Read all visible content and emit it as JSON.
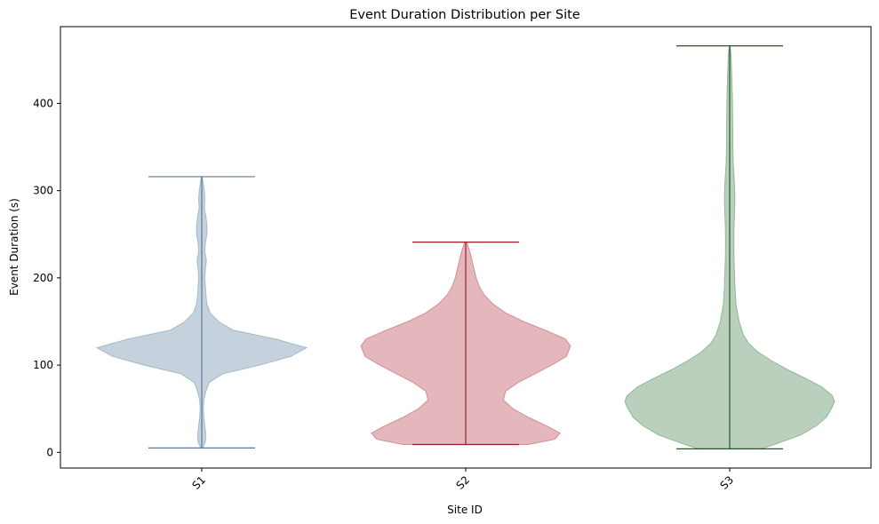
{
  "chart_data": {
    "type": "violin",
    "title": "Event Duration Distribution per Site",
    "xlabel": "Site ID",
    "ylabel": "Event Duration (s)",
    "ylim": [
      -18,
      488
    ],
    "yticks": [
      0,
      100,
      200,
      300,
      400
    ],
    "categories": [
      "S1",
      "S2",
      "S3"
    ],
    "grid": false,
    "series": [
      {
        "category": "S1",
        "min": 5,
        "max": 316,
        "fill": "#7f9cb4",
        "line": "#5b7a92",
        "profile": [
          [
            5,
            0.01
          ],
          [
            12,
            0.035
          ],
          [
            20,
            0.04
          ],
          [
            30,
            0.03
          ],
          [
            40,
            0.02
          ],
          [
            50,
            0.015
          ],
          [
            60,
            0.02
          ],
          [
            70,
            0.04
          ],
          [
            80,
            0.07
          ],
          [
            90,
            0.2
          ],
          [
            100,
            0.55
          ],
          [
            110,
            0.85
          ],
          [
            120,
            1.0
          ],
          [
            130,
            0.7
          ],
          [
            140,
            0.3
          ],
          [
            150,
            0.16
          ],
          [
            160,
            0.08
          ],
          [
            170,
            0.05
          ],
          [
            180,
            0.04
          ],
          [
            190,
            0.035
          ],
          [
            200,
            0.03
          ],
          [
            210,
            0.035
          ],
          [
            220,
            0.045
          ],
          [
            230,
            0.03
          ],
          [
            240,
            0.035
          ],
          [
            250,
            0.05
          ],
          [
            260,
            0.05
          ],
          [
            270,
            0.04
          ],
          [
            280,
            0.025
          ],
          [
            290,
            0.03
          ],
          [
            300,
            0.025
          ],
          [
            310,
            0.012
          ],
          [
            316,
            0.004
          ]
        ]
      },
      {
        "category": "S2",
        "min": 9,
        "max": 241,
        "fill": "#c0606b",
        "line": "#9b1c25",
        "profile": [
          [
            9,
            0.6
          ],
          [
            15,
            0.85
          ],
          [
            22,
            0.9
          ],
          [
            30,
            0.78
          ],
          [
            40,
            0.6
          ],
          [
            50,
            0.45
          ],
          [
            60,
            0.36
          ],
          [
            70,
            0.38
          ],
          [
            80,
            0.5
          ],
          [
            90,
            0.66
          ],
          [
            100,
            0.82
          ],
          [
            110,
            0.96
          ],
          [
            122,
            1.0
          ],
          [
            130,
            0.95
          ],
          [
            140,
            0.76
          ],
          [
            150,
            0.55
          ],
          [
            160,
            0.38
          ],
          [
            170,
            0.26
          ],
          [
            180,
            0.18
          ],
          [
            190,
            0.13
          ],
          [
            200,
            0.1
          ],
          [
            210,
            0.08
          ],
          [
            220,
            0.06
          ],
          [
            230,
            0.04
          ],
          [
            241,
            0.01
          ]
        ]
      },
      {
        "category": "S3",
        "min": 4,
        "max": 466,
        "fill": "#67976b",
        "line": "#1f5a27",
        "profile": [
          [
            4,
            0.3
          ],
          [
            10,
            0.45
          ],
          [
            20,
            0.68
          ],
          [
            30,
            0.82
          ],
          [
            40,
            0.92
          ],
          [
            50,
            0.97
          ],
          [
            58,
            1.0
          ],
          [
            65,
            0.98
          ],
          [
            75,
            0.88
          ],
          [
            85,
            0.72
          ],
          [
            95,
            0.55
          ],
          [
            105,
            0.4
          ],
          [
            115,
            0.27
          ],
          [
            125,
            0.18
          ],
          [
            135,
            0.13
          ],
          [
            150,
            0.09
          ],
          [
            170,
            0.06
          ],
          [
            190,
            0.05
          ],
          [
            210,
            0.045
          ],
          [
            230,
            0.04
          ],
          [
            250,
            0.04
          ],
          [
            270,
            0.045
          ],
          [
            290,
            0.05
          ],
          [
            310,
            0.045
          ],
          [
            330,
            0.035
          ],
          [
            350,
            0.03
          ],
          [
            370,
            0.03
          ],
          [
            390,
            0.028
          ],
          [
            410,
            0.025
          ],
          [
            430,
            0.02
          ],
          [
            450,
            0.015
          ],
          [
            460,
            0.01
          ],
          [
            466,
            0.004
          ]
        ]
      }
    ]
  }
}
